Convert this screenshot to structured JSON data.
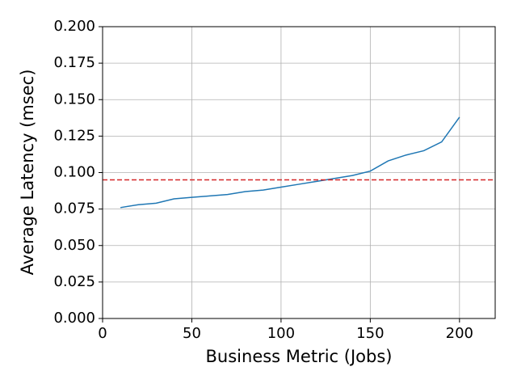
{
  "chart_data": {
    "type": "line",
    "xlabel": "Business Metric (Jobs)",
    "ylabel": "Average Latency (msec)",
    "x": [
      10,
      20,
      30,
      40,
      50,
      60,
      70,
      80,
      90,
      100,
      110,
      120,
      130,
      140,
      150,
      160,
      170,
      180,
      190,
      200
    ],
    "series": [
      {
        "color": "#1f77b4",
        "values": [
          0.076,
          0.078,
          0.079,
          0.082,
          0.083,
          0.084,
          0.085,
          0.087,
          0.088,
          0.09,
          0.092,
          0.094,
          0.096,
          0.098,
          0.101,
          0.108,
          0.112,
          0.115,
          0.121,
          0.138
        ]
      }
    ],
    "reference_line": {
      "value": 0.095,
      "color": "#d62728",
      "style": "dashed"
    },
    "xlim": [
      0,
      220
    ],
    "xticks": [
      0,
      50,
      100,
      150,
      200
    ],
    "ylim": [
      0,
      0.2
    ],
    "yticks": [
      {
        "value": 0,
        "label": "0.000"
      },
      0.025,
      {
        "value": 0.05,
        "label": "0.050"
      },
      0.075,
      {
        "value": 0.1,
        "label": "0.100"
      },
      0.125,
      {
        "value": 0.15,
        "label": "0.150"
      },
      0.175,
      {
        "value": 0.2,
        "label": "0.200"
      }
    ],
    "grid": true
  }
}
